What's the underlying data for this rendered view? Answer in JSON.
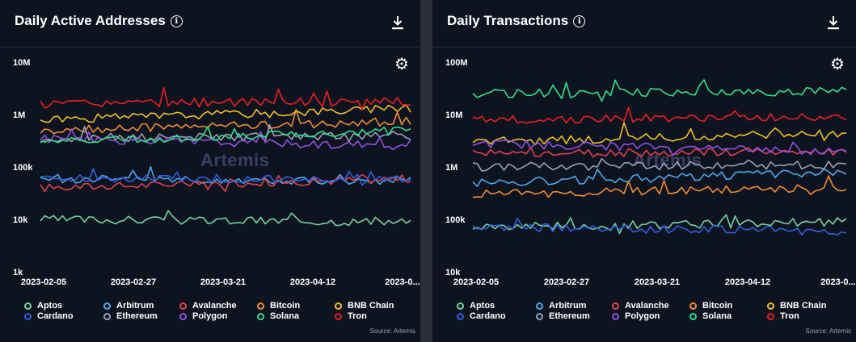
{
  "panels": [
    {
      "title": "Daily Active Addresses",
      "info_icon": "info-icon",
      "download_icon": "download-icon",
      "settings_icon": "gear-icon",
      "watermark": "Artemis",
      "source": "Source: Artemis",
      "chart_data": {
        "type": "line",
        "y_scale": "log",
        "ylim": [
          1000,
          10000000
        ],
        "y_ticks": [
          "10M",
          "1M",
          "100k",
          "10k",
          "1k"
        ],
        "x_ticks": [
          "2023-02-05",
          "2023-02-27",
          "2023-03-21",
          "2023-04-12",
          "2023-0..."
        ],
        "x_range": [
          "2023-02-05",
          "2023-05-01"
        ],
        "grid": false,
        "legend_position": "bottom",
        "series": [
          {
            "name": "Aptos",
            "color": "#74d4a0",
            "start": 10000,
            "end": 9000,
            "level": 14000
          },
          {
            "name": "Arbitrum",
            "color": "#4aa8e8",
            "start": 60000,
            "end": 55000,
            "level": 75000
          },
          {
            "name": "Avalanche",
            "color": "#e04050",
            "start": 40000,
            "end": 60000,
            "level": 50000
          },
          {
            "name": "Bitcoin",
            "color": "#f08c30",
            "start": 500000,
            "end": 750000,
            "level": 700000
          },
          {
            "name": "BNB Chain",
            "color": "#f0c020",
            "start": 800000,
            "end": 1300000,
            "level": 1100000
          },
          {
            "name": "Cardano",
            "color": "#3060e0",
            "start": 60000,
            "end": 60000,
            "level": 65000
          },
          {
            "name": "Ethereum",
            "color": "#9aa0b8",
            "start": 350000,
            "end": 400000,
            "level": 370000
          },
          {
            "name": "Polygon",
            "color": "#9050e0",
            "start": 350000,
            "end": 250000,
            "level": 360000
          },
          {
            "name": "Solana",
            "color": "#30e08a",
            "start": 300000,
            "end": 500000,
            "level": 280000
          },
          {
            "name": "Tron",
            "color": "#e82020",
            "start": 1600000,
            "end": 1800000,
            "level": 1700000
          }
        ]
      }
    },
    {
      "title": "Daily Transactions",
      "info_icon": "info-icon",
      "download_icon": "download-icon",
      "settings_icon": "gear-icon",
      "watermark": "Artemis",
      "source": "Source: Artemis",
      "chart_data": {
        "type": "line",
        "y_scale": "log",
        "ylim": [
          10000,
          100000000
        ],
        "y_ticks": [
          "100M",
          "10M",
          "1M",
          "100k",
          "10k"
        ],
        "x_ticks": [
          "2023-02-05",
          "2023-02-27",
          "2023-03-21",
          "2023-04-12",
          "2023-0..."
        ],
        "x_range": [
          "2023-02-05",
          "2023-05-01"
        ],
        "grid": false,
        "legend_position": "bottom",
        "series": [
          {
            "name": "Aptos",
            "color": "#74d4a0",
            "start": 70000,
            "end": 90000,
            "level": 120000
          },
          {
            "name": "Arbitrum",
            "color": "#4aa8e8",
            "start": 500000,
            "end": 800000,
            "level": 1000000
          },
          {
            "name": "Avalanche",
            "color": "#e04050",
            "start": 1800000,
            "end": 2000000,
            "level": 2000000
          },
          {
            "name": "Bitcoin",
            "color": "#f08c30",
            "start": 300000,
            "end": 400000,
            "level": 450000
          },
          {
            "name": "BNB Chain",
            "color": "#f0c020",
            "start": 3000000,
            "end": 4500000,
            "level": 3800000
          },
          {
            "name": "Cardano",
            "color": "#3060e0",
            "start": 70000,
            "end": 60000,
            "level": 60000
          },
          {
            "name": "Ethereum",
            "color": "#9aa0b8",
            "start": 1000000,
            "end": 1100000,
            "level": 1100000
          },
          {
            "name": "Polygon",
            "color": "#9050e0",
            "start": 2800000,
            "end": 2000000,
            "level": 2600000
          },
          {
            "name": "Solana",
            "color": "#30e08a",
            "start": 25000000,
            "end": 28000000,
            "level": 28000000
          },
          {
            "name": "Tron",
            "color": "#e82020",
            "start": 8000000,
            "end": 9000000,
            "level": 9000000
          }
        ]
      }
    }
  ]
}
